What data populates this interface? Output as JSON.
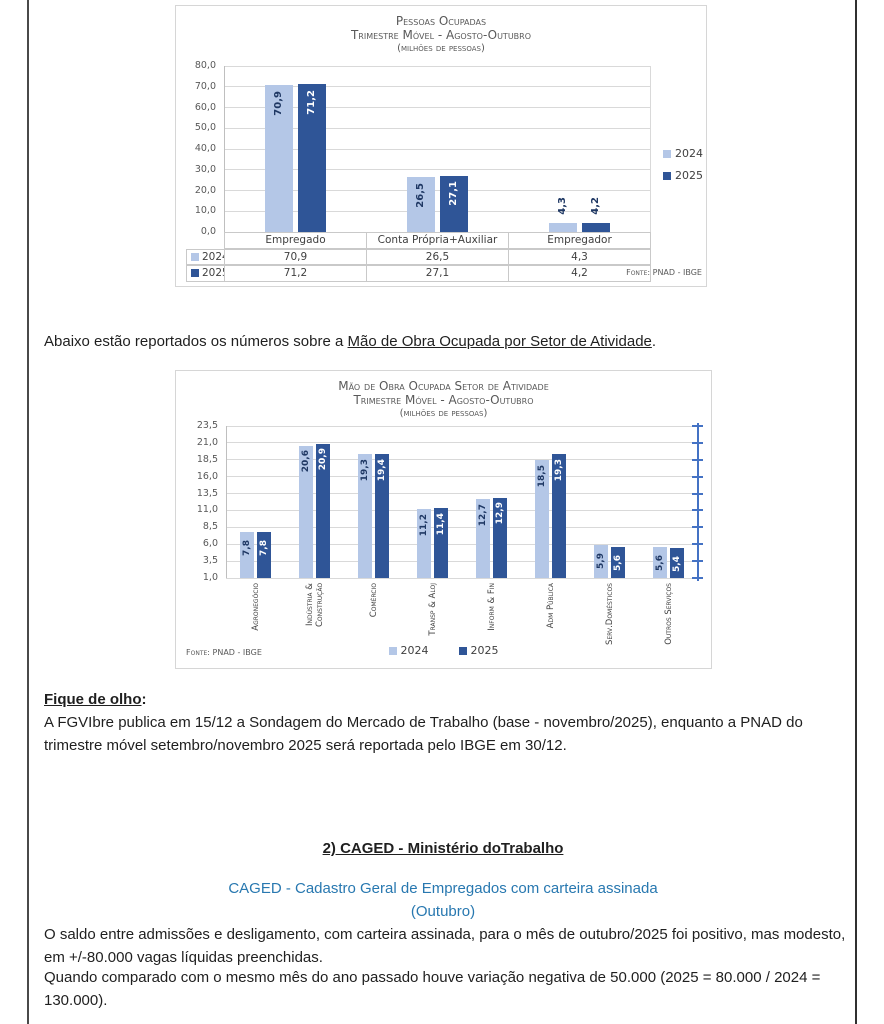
{
  "page": {
    "intro": {
      "prefix": "Abaixo estão reportados os números sobre a ",
      "underlined": "Mão de Obra Ocupada por Setor de Atividade",
      "suffix": "."
    },
    "fique_de_olho": {
      "label": "Fique de olho",
      "colon": ":",
      "body": "A FGVIbre publica em 15/12 a Sondagem do Mercado de Trabalho (base - novembro/2025), enquanto a PNAD do trimestre móvel setembro/novembro 2025 será reportada pelo IBGE em 30/12."
    },
    "caged": {
      "heading": "2) CAGED - Ministério doTrabalho",
      "subtitle": "CAGED - Cadastro Geral de Empregados com carteira assinada",
      "month": "(Outubro)",
      "paragraph1": "O saldo entre admissões e desligamento, com carteira assinada, para o mês de outubro/2025 foi positivo, mas modesto, em +/-80.000 vagas líquidas preenchidas.",
      "paragraph2": "Quando comparado com o mesmo mês do ano passado houve variação negativa de 50.000 (2025 = 80.000 / 2024 = 130.000)."
    }
  },
  "colors": {
    "series_2024": "#B4C7E7",
    "series_2025": "#2F5597",
    "bar_label_dark": "#1F3864",
    "secondary_axis_blue": "#4472C4",
    "grid": "#D9D9D9",
    "heading_blue": "#2878B0",
    "chart_text_gray": "#595959"
  },
  "chart_data": [
    {
      "type": "bar",
      "title": "Pessoas Ocupadas",
      "subtitle": "Trimestre Móvel - Agosto-Outubro",
      "unit": "(milhões de pessoas)",
      "categories": [
        "Empregado",
        "Conta Própria+Auxiliar",
        "Empregador"
      ],
      "series": [
        {
          "name": "2024",
          "color": "#B4C7E7",
          "values": [
            70.9,
            26.5,
            4.3
          ]
        },
        {
          "name": "2025",
          "color": "#2F5597",
          "values": [
            71.2,
            27.1,
            4.2
          ]
        }
      ],
      "ylim": [
        0,
        80
      ],
      "ystep": 10,
      "grid": true,
      "legend_position": "right",
      "data_table": true,
      "source": "Fonte: PNAD - IBGE"
    },
    {
      "type": "bar",
      "title": "Mão de Obra Ocupada Setor de Atividade",
      "subtitle": "Trimestre Móvel - Agosto-Outubro",
      "unit": "(milhões de pessoas)",
      "categories": [
        "Agronegócio",
        "Indústria & Construção",
        "Comércio",
        "Transp & Aloj",
        "Inform & Fin",
        "Adm Pública",
        "Serv.Domésticos",
        "Outros Serviços"
      ],
      "series": [
        {
          "name": "2024",
          "color": "#B4C7E7",
          "values": [
            7.8,
            20.6,
            19.3,
            11.2,
            12.7,
            18.5,
            5.9,
            5.6
          ]
        },
        {
          "name": "2025",
          "color": "#2F5597",
          "values": [
            7.8,
            20.9,
            19.4,
            11.4,
            12.9,
            19.3,
            5.6,
            5.4
          ]
        }
      ],
      "ylim": [
        1,
        23.5
      ],
      "ystep": 2.5,
      "grid": true,
      "legend_position": "bottom",
      "secondary_right_axis": true,
      "source": "Fonte: PNAD - IBGE"
    }
  ]
}
